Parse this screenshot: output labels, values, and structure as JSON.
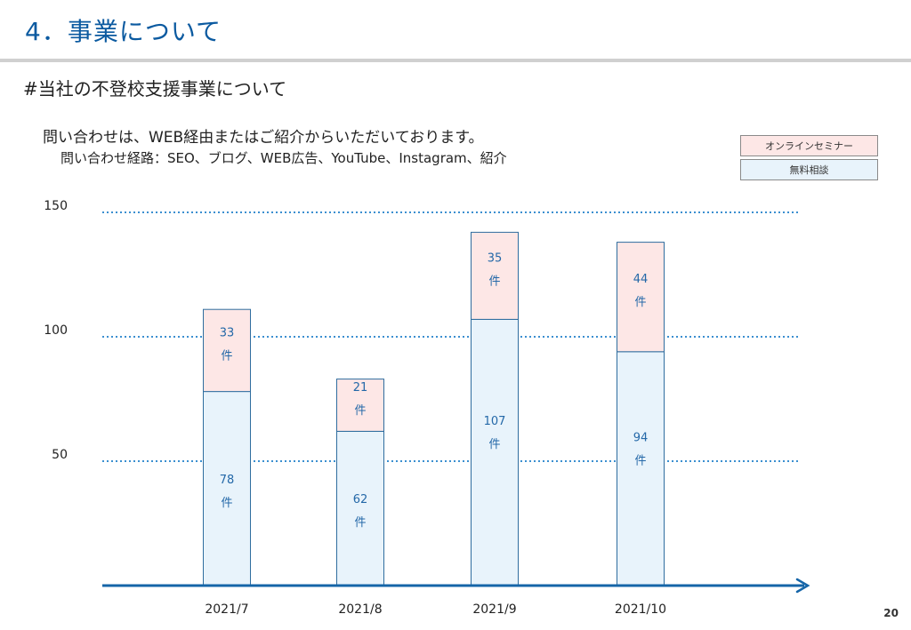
{
  "header": {
    "title": "4．事業について",
    "subtitle": "#当社の不登校支援事業について"
  },
  "lead": {
    "line1": "問い合わせは、WEB経由またはご紹介からいただいております。",
    "line2": "問い合わせ経路：SEO、ブログ、WEB広告、YouTube、Instagram、紹介"
  },
  "legend": {
    "seminar": "オンラインセミナー",
    "consult": "無料相談"
  },
  "page_number": "20",
  "chart_data": {
    "type": "bar",
    "stacked": true,
    "categories": [
      "2021/7",
      "2021/8",
      "2021/9",
      "2021/10"
    ],
    "series": [
      {
        "name": "無料相談",
        "values": [
          78,
          62,
          107,
          94
        ],
        "color": "#e8f3fb",
        "stroke": "#2f6d9f"
      },
      {
        "name": "オンラインセミナー",
        "values": [
          33,
          21,
          35,
          44
        ],
        "color": "#fde7e6",
        "stroke": "#2f6d9f"
      }
    ],
    "unit_label": "件",
    "y_ticks": [
      "50",
      "100",
      "150"
    ],
    "y_tick_values": [
      50,
      100,
      150
    ],
    "ylim": [
      0,
      150
    ],
    "grid": true,
    "grid_color": "#3b8fd0",
    "axis_color": "#1565a8",
    "label_color": "#2468a8"
  }
}
